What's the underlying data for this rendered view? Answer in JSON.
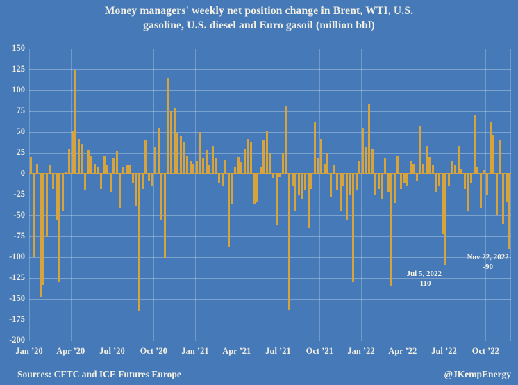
{
  "title": {
    "line1": "Money managers' weekly net position change in Brent, WTI, U.S.",
    "line2": "gasoline, U.S. diesel and Euro gasoil (million bbl)"
  },
  "footer": {
    "sources": "Sources: CFTC and ICE Futures Europe",
    "handle": "@JKempEnergy"
  },
  "colors": {
    "background": "#4679b7",
    "bar": "#d7a33d",
    "gridline": "#7a9dcb",
    "zero_line": "#d7a33d",
    "text": "#f2efe3"
  },
  "chart_data": {
    "type": "bar",
    "title": "Money managers' weekly net position change in Brent, WTI, U.S. gasoline, U.S. diesel and Euro gasoil (million bbl)",
    "xlabel": "",
    "ylabel": "million bbl",
    "ylim": [
      -200,
      150
    ],
    "y_ticks": [
      150,
      125,
      100,
      75,
      50,
      25,
      0,
      -25,
      -50,
      -75,
      -100,
      -125,
      -150,
      -175,
      -200
    ],
    "grid": true,
    "x_tick_labels": [
      "Jan ’20",
      "Apr ’20",
      "Jul ’20",
      "Oct ’20",
      "Jan ’21",
      "Apr ’21",
      "Jul ’21",
      "Oct ’21",
      "Jan ’22",
      "Apr ’22",
      "Jul ’22",
      "Oct ’22"
    ],
    "bars_per_quarter": 13,
    "frequency": "weekly",
    "values": [
      20,
      -100,
      12,
      -148,
      -133,
      -76,
      10,
      -18,
      -55,
      -130,
      -45,
      2,
      30,
      52,
      124,
      42,
      36,
      -19,
      28,
      22,
      12,
      8,
      -18,
      21,
      10,
      -22,
      19,
      27,
      -42,
      8,
      10,
      10,
      -12,
      -39,
      -164,
      -18,
      40,
      -8,
      -15,
      32,
      55,
      -55,
      -101,
      115,
      75,
      79,
      48,
      45,
      38,
      22,
      15,
      12,
      15,
      50,
      18,
      28,
      10,
      33,
      18,
      -12,
      -15,
      17,
      -88,
      -36,
      8,
      20,
      14,
      30,
      42,
      38,
      -36,
      -33,
      8,
      40,
      52,
      25,
      -5,
      -62,
      -4,
      25,
      81,
      -163,
      -15,
      -45,
      -25,
      -30,
      -20,
      -65,
      -18,
      62,
      18,
      42,
      12,
      25,
      -28,
      10,
      -20,
      -45,
      -15,
      -55,
      -25,
      -130,
      -20,
      15,
      55,
      32,
      83,
      30,
      -25,
      -18,
      -30,
      18,
      -22,
      -135,
      -35,
      22,
      -18,
      -12,
      -15,
      15,
      12,
      -8,
      57,
      12,
      33,
      20,
      10,
      -22,
      -15,
      -72,
      -110,
      -15,
      15,
      10,
      33,
      6,
      -18,
      -45,
      -12,
      71,
      8,
      -42,
      5,
      -25,
      62,
      47,
      -50,
      40,
      -60,
      -33,
      -90
    ],
    "annotations": [
      {
        "line1": "Jul 5, 2022",
        "line2": "-110",
        "bar_index": 130,
        "value": -110
      },
      {
        "line1": "Nov 22, 2022",
        "line2": "-90",
        "bar_index": 150,
        "value": -90
      }
    ]
  }
}
